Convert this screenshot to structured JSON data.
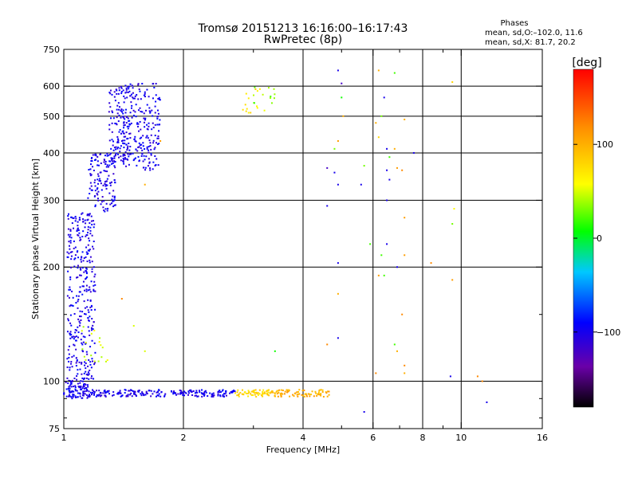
{
  "chart_data": {
    "type": "scatter",
    "title": "Tromsø 20151213 16:16:00–16:17:43",
    "subtitle": "RwPretec (8p)",
    "xlabel": "Frequency [MHz]",
    "ylabel": "Stationary phase Virtual Height [km]",
    "x_scale": "log",
    "y_scale": "log",
    "xlim": [
      1,
      16
    ],
    "ylim": [
      75,
      750
    ],
    "x_ticks": [
      1,
      2,
      4,
      6,
      8,
      10,
      16
    ],
    "x_minor_ticks": [
      3,
      5,
      7,
      9
    ],
    "y_ticks": [
      75,
      100,
      200,
      300,
      400,
      500,
      600,
      750
    ],
    "y_minor_ticks": [
      80,
      90,
      150
    ],
    "y_gridlines": [
      100,
      200,
      300,
      400,
      500,
      600
    ],
    "x_gridlines": [
      2,
      4,
      6,
      8,
      10
    ],
    "grid": true,
    "phases_box": {
      "title": "Phases",
      "line1": "mean, sd,O:–102.0, 11.6",
      "line2": "mean, sd,X:  81.7, 20.2"
    },
    "colorbar": {
      "label": "[deg]",
      "range": [
        -180,
        180
      ],
      "ticks": [
        100,
        0,
        -100
      ],
      "tick_labels": [
        "100",
        "0",
        "−100"
      ],
      "colors": [
        "#000000",
        "#6a00a8",
        "#0000ff",
        "#00c8ff",
        "#00ff00",
        "#ffff00",
        "#ff8c00",
        "#ff0000"
      ]
    },
    "clusters": [
      {
        "f": [
          1.0,
          1.15
        ],
        "h": [
          90,
          100
        ],
        "phase": -100,
        "n": 90
      },
      {
        "f": [
          1.15,
          2.7
        ],
        "h": [
          91,
          95
        ],
        "phase": -100,
        "n": 210
      },
      {
        "f": [
          2.7,
          3.3
        ],
        "h": [
          91,
          95
        ],
        "phase": 80,
        "n": 60
      },
      {
        "f": [
          3.3,
          4.7
        ],
        "h": [
          91,
          95
        ],
        "phase": 100,
        "n": 90
      },
      {
        "f": [
          1.02,
          1.2
        ],
        "h": [
          100,
          280
        ],
        "phase": -100,
        "n": 340
      },
      {
        "f": [
          1.15,
          1.35
        ],
        "h": [
          280,
          400
        ],
        "phase": -100,
        "n": 140
      },
      {
        "f": [
          1.3,
          1.45
        ],
        "h": [
          380,
          600
        ],
        "phase": -100,
        "n": 110
      },
      {
        "f": [
          1.4,
          1.75
        ],
        "h": [
          360,
          610
        ],
        "phase": -100,
        "n": 230
      },
      {
        "f": [
          1.1,
          1.3
        ],
        "h": [
          110,
          140
        ],
        "phase": 50,
        "n": 18
      },
      {
        "f": [
          2.8,
          3.2
        ],
        "h": [
          510,
          590
        ],
        "phase": 70,
        "n": 14
      },
      {
        "f": [
          3.0,
          3.4
        ],
        "h": [
          540,
          600
        ],
        "phase": 30,
        "n": 12
      }
    ],
    "points": [
      {
        "f": 4.9,
        "h": 660,
        "phase": -100
      },
      {
        "f": 5.0,
        "h": 610,
        "phase": -120
      },
      {
        "f": 5.0,
        "h": 560,
        "phase": 10
      },
      {
        "f": 5.05,
        "h": 500,
        "phase": 100
      },
      {
        "f": 4.9,
        "h": 430,
        "phase": 110
      },
      {
        "f": 4.8,
        "h": 410,
        "phase": 30
      },
      {
        "f": 4.6,
        "h": 365,
        "phase": -120
      },
      {
        "f": 4.8,
        "h": 355,
        "phase": -100
      },
      {
        "f": 4.9,
        "h": 330,
        "phase": -100
      },
      {
        "f": 4.6,
        "h": 290,
        "phase": -100
      },
      {
        "f": 4.9,
        "h": 205,
        "phase": -100
      },
      {
        "f": 4.9,
        "h": 170,
        "phase": 100
      },
      {
        "f": 4.9,
        "h": 130,
        "phase": -100
      },
      {
        "f": 4.6,
        "h": 125,
        "phase": 120
      },
      {
        "f": 5.7,
        "h": 370,
        "phase": 30
      },
      {
        "f": 5.6,
        "h": 330,
        "phase": -100
      },
      {
        "f": 5.9,
        "h": 230,
        "phase": 20
      },
      {
        "f": 6.2,
        "h": 660,
        "phase": 100
      },
      {
        "f": 6.1,
        "h": 480,
        "phase": 100
      },
      {
        "f": 6.2,
        "h": 440,
        "phase": 80
      },
      {
        "f": 6.4,
        "h": 560,
        "phase": -100
      },
      {
        "f": 6.3,
        "h": 500,
        "phase": 30
      },
      {
        "f": 6.5,
        "h": 410,
        "phase": -100
      },
      {
        "f": 6.6,
        "h": 390,
        "phase": 20
      },
      {
        "f": 6.5,
        "h": 360,
        "phase": -100
      },
      {
        "f": 6.6,
        "h": 340,
        "phase": -100
      },
      {
        "f": 6.5,
        "h": 300,
        "phase": -100
      },
      {
        "f": 6.5,
        "h": 230,
        "phase": -100
      },
      {
        "f": 6.3,
        "h": 215,
        "phase": 20
      },
      {
        "f": 6.2,
        "h": 190,
        "phase": 110
      },
      {
        "f": 6.4,
        "h": 190,
        "phase": 20
      },
      {
        "f": 6.8,
        "h": 650,
        "phase": 20
      },
      {
        "f": 6.8,
        "h": 410,
        "phase": 100
      },
      {
        "f": 6.9,
        "h": 365,
        "phase": 110
      },
      {
        "f": 7.1,
        "h": 360,
        "phase": 120
      },
      {
        "f": 7.2,
        "h": 490,
        "phase": 100
      },
      {
        "f": 7.2,
        "h": 270,
        "phase": 110
      },
      {
        "f": 7.2,
        "h": 215,
        "phase": 110
      },
      {
        "f": 6.9,
        "h": 200,
        "phase": -100
      },
      {
        "f": 7.1,
        "h": 150,
        "phase": 120
      },
      {
        "f": 6.8,
        "h": 125,
        "phase": 20
      },
      {
        "f": 6.9,
        "h": 120,
        "phase": 100
      },
      {
        "f": 7.2,
        "h": 110,
        "phase": 120
      },
      {
        "f": 7.2,
        "h": 105,
        "phase": 100
      },
      {
        "f": 6.1,
        "h": 105,
        "phase": 120
      },
      {
        "f": 5.7,
        "h": 83,
        "phase": -100
      },
      {
        "f": 7.6,
        "h": 400,
        "phase": -100
      },
      {
        "f": 8.4,
        "h": 205,
        "phase": 120
      },
      {
        "f": 9.5,
        "h": 615,
        "phase": 80
      },
      {
        "f": 9.6,
        "h": 285,
        "phase": 60
      },
      {
        "f": 9.5,
        "h": 260,
        "phase": 30
      },
      {
        "f": 9.5,
        "h": 185,
        "phase": 110
      },
      {
        "f": 9.4,
        "h": 103,
        "phase": -100
      },
      {
        "f": 11.0,
        "h": 103,
        "phase": 120
      },
      {
        "f": 11.3,
        "h": 100,
        "phase": 120
      },
      {
        "f": 11.6,
        "h": 88,
        "phase": -100
      },
      {
        "f": 3.4,
        "h": 120,
        "phase": 10
      },
      {
        "f": 1.6,
        "h": 120,
        "phase": 50
      },
      {
        "f": 1.5,
        "h": 140,
        "phase": 50
      },
      {
        "f": 1.4,
        "h": 165,
        "phase": 120
      },
      {
        "f": 1.6,
        "h": 330,
        "phase": 100
      },
      {
        "f": 1.75,
        "h": 430,
        "phase": 110
      }
    ]
  }
}
